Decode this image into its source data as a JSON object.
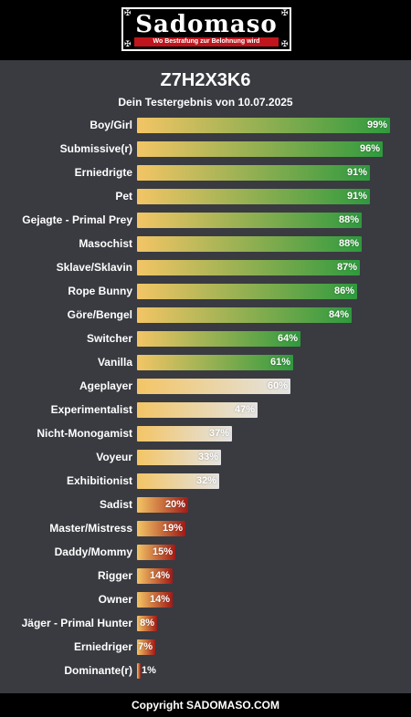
{
  "header": {
    "logo_text": "Sadomaso",
    "tagline": "Wo Bestrafung zur Belohnung wird"
  },
  "result": {
    "code": "Z7H2X3K6",
    "subtitle": "Dein Testergebnis von 10.07.2025"
  },
  "colors": {
    "background": "#393b41",
    "header_bg": "#000000",
    "bar_start": "#f3c565",
    "high_end": "#2f9a3e",
    "mid_end": "#e3e3e3",
    "low_end": "#a11a16",
    "logo_red": "#c0151c"
  },
  "results": [
    {
      "label": "Boy/Girl",
      "percent": 99,
      "group": "high"
    },
    {
      "label": "Submissive(r)",
      "percent": 96,
      "group": "high"
    },
    {
      "label": "Erniedrigte",
      "percent": 91,
      "group": "high"
    },
    {
      "label": "Pet",
      "percent": 91,
      "group": "high"
    },
    {
      "label": "Gejagte - Primal Prey",
      "percent": 88,
      "group": "high"
    },
    {
      "label": "Masochist",
      "percent": 88,
      "group": "high"
    },
    {
      "label": "Sklave/Sklavin",
      "percent": 87,
      "group": "high"
    },
    {
      "label": "Rope Bunny",
      "percent": 86,
      "group": "high"
    },
    {
      "label": "Göre/Bengel",
      "percent": 84,
      "group": "high"
    },
    {
      "label": "Switcher",
      "percent": 64,
      "group": "high"
    },
    {
      "label": "Vanilla",
      "percent": 61,
      "group": "high"
    },
    {
      "label": "Ageplayer",
      "percent": 60,
      "group": "mid"
    },
    {
      "label": "Experimentalist",
      "percent": 47,
      "group": "mid"
    },
    {
      "label": "Nicht-Monogamist",
      "percent": 37,
      "group": "mid"
    },
    {
      "label": "Voyeur",
      "percent": 33,
      "group": "mid"
    },
    {
      "label": "Exhibitionist",
      "percent": 32,
      "group": "mid"
    },
    {
      "label": "Sadist",
      "percent": 20,
      "group": "low"
    },
    {
      "label": "Master/Mistress",
      "percent": 19,
      "group": "low"
    },
    {
      "label": "Daddy/Mommy",
      "percent": 15,
      "group": "low"
    },
    {
      "label": "Rigger",
      "percent": 14,
      "group": "low"
    },
    {
      "label": "Owner",
      "percent": 14,
      "group": "low"
    },
    {
      "label": "Jäger - Primal Hunter",
      "percent": 8,
      "group": "low"
    },
    {
      "label": "Erniedriger",
      "percent": 7,
      "group": "low"
    },
    {
      "label": "Dominante(r)",
      "percent": 1,
      "group": "low"
    }
  ],
  "footer": {
    "copyright": "Copyright SADOMASO.COM"
  }
}
